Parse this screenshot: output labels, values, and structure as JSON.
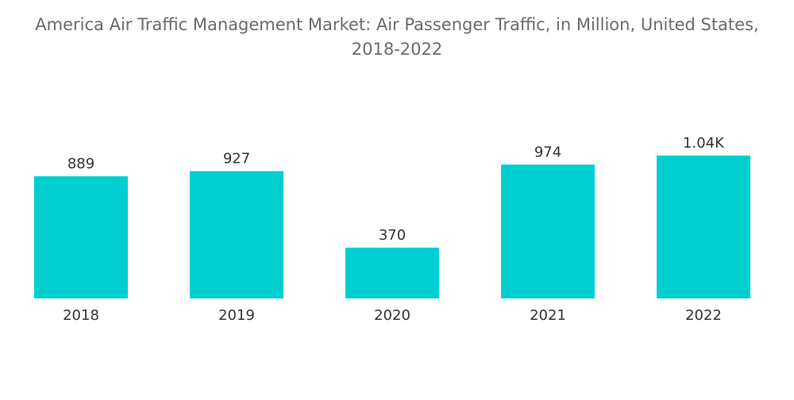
{
  "chart_data": {
    "type": "bar",
    "title_line1": "America Air Traffic Management Market: Air Passenger Traffic, in Million, United States,",
    "title_line2": "2018-2022",
    "categories": [
      "2018",
      "2019",
      "2020",
      "2021",
      "2022"
    ],
    "values": [
      889,
      927,
      370,
      974,
      1040
    ],
    "value_labels": [
      "889",
      "927",
      "370",
      "974",
      "1.04K"
    ],
    "xlabel": "",
    "ylabel": "",
    "ylim": [
      0,
      1100
    ],
    "bar_color": "#00CED1",
    "grid": false
  }
}
